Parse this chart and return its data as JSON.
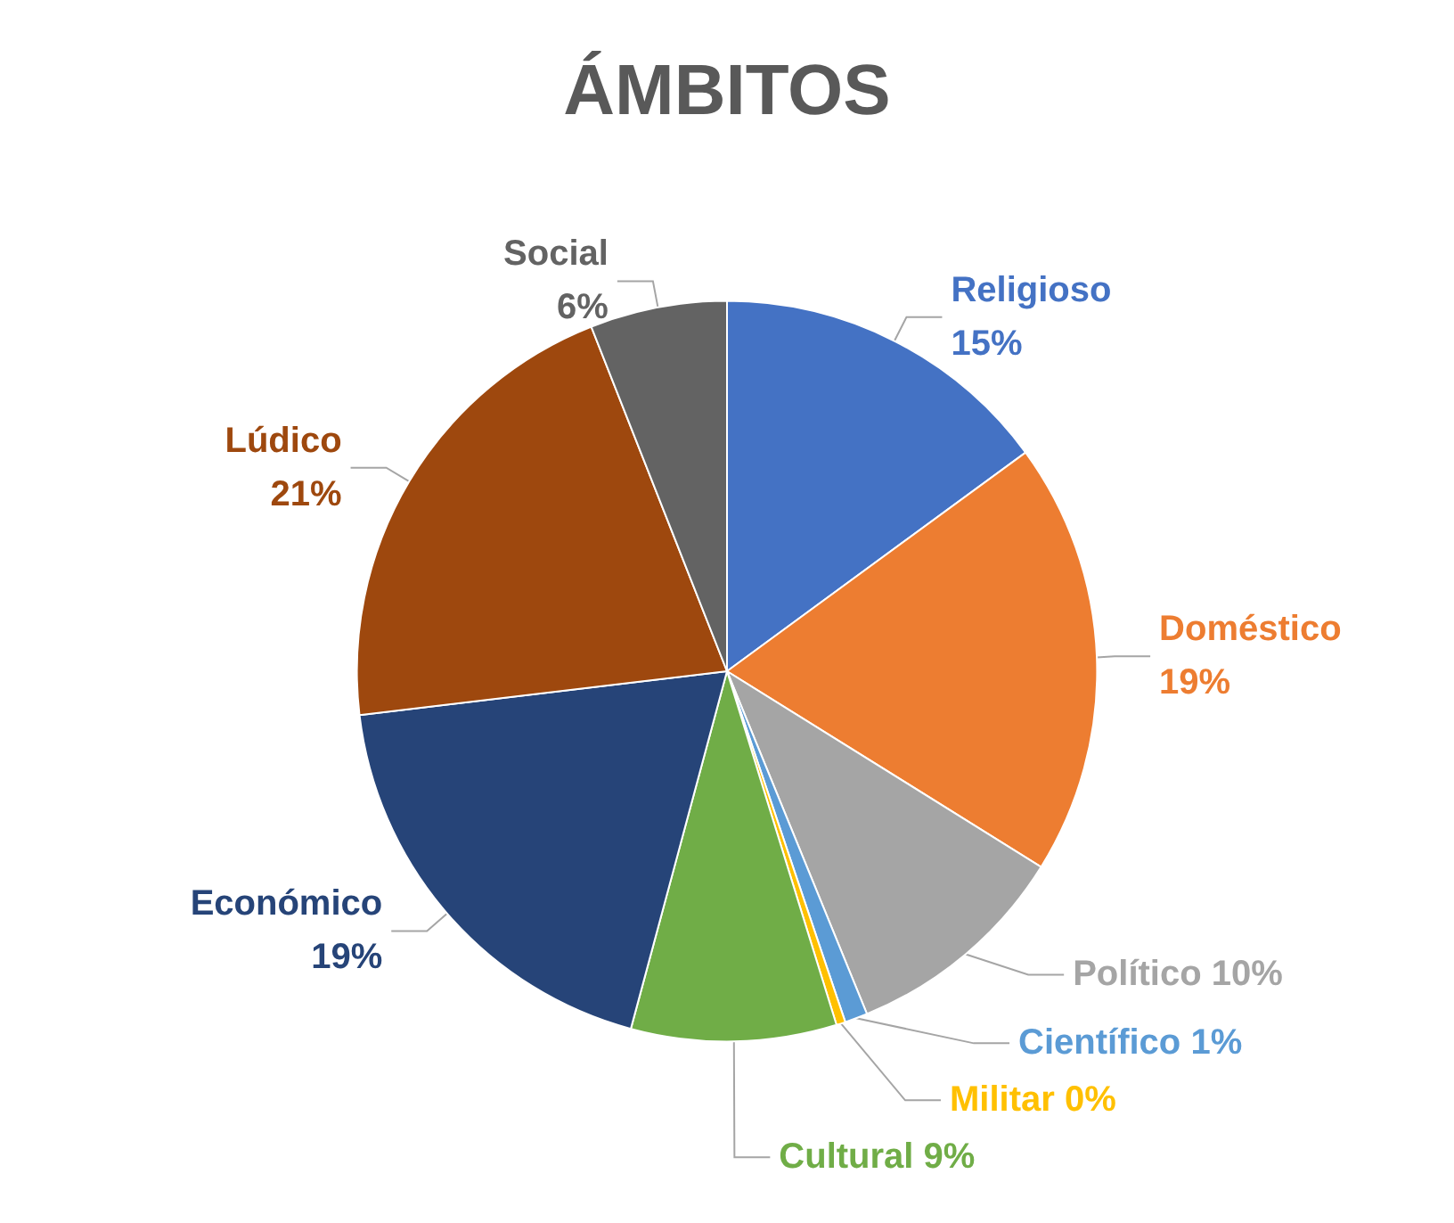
{
  "chart_data": {
    "type": "pie",
    "title": "ÁMBITOS",
    "categories": [
      "Religioso",
      "Doméstico",
      "Político",
      "Científico",
      "Militar",
      "Cultural",
      "Económico",
      "Lúdico",
      "Social"
    ],
    "values": [
      15,
      19,
      10,
      1,
      0.4,
      9,
      19,
      21,
      6
    ],
    "value_labels": [
      "15%",
      "19%",
      "10%",
      "1%",
      "0%",
      "9%",
      "19%",
      "21%",
      "6%"
    ],
    "colors": [
      "#4472c4",
      "#ed7d31",
      "#a5a5a5",
      "#5b9bd5",
      "#ffc000",
      "#70ad47",
      "#264478",
      "#9e480e",
      "#636363"
    ],
    "legend": false
  }
}
